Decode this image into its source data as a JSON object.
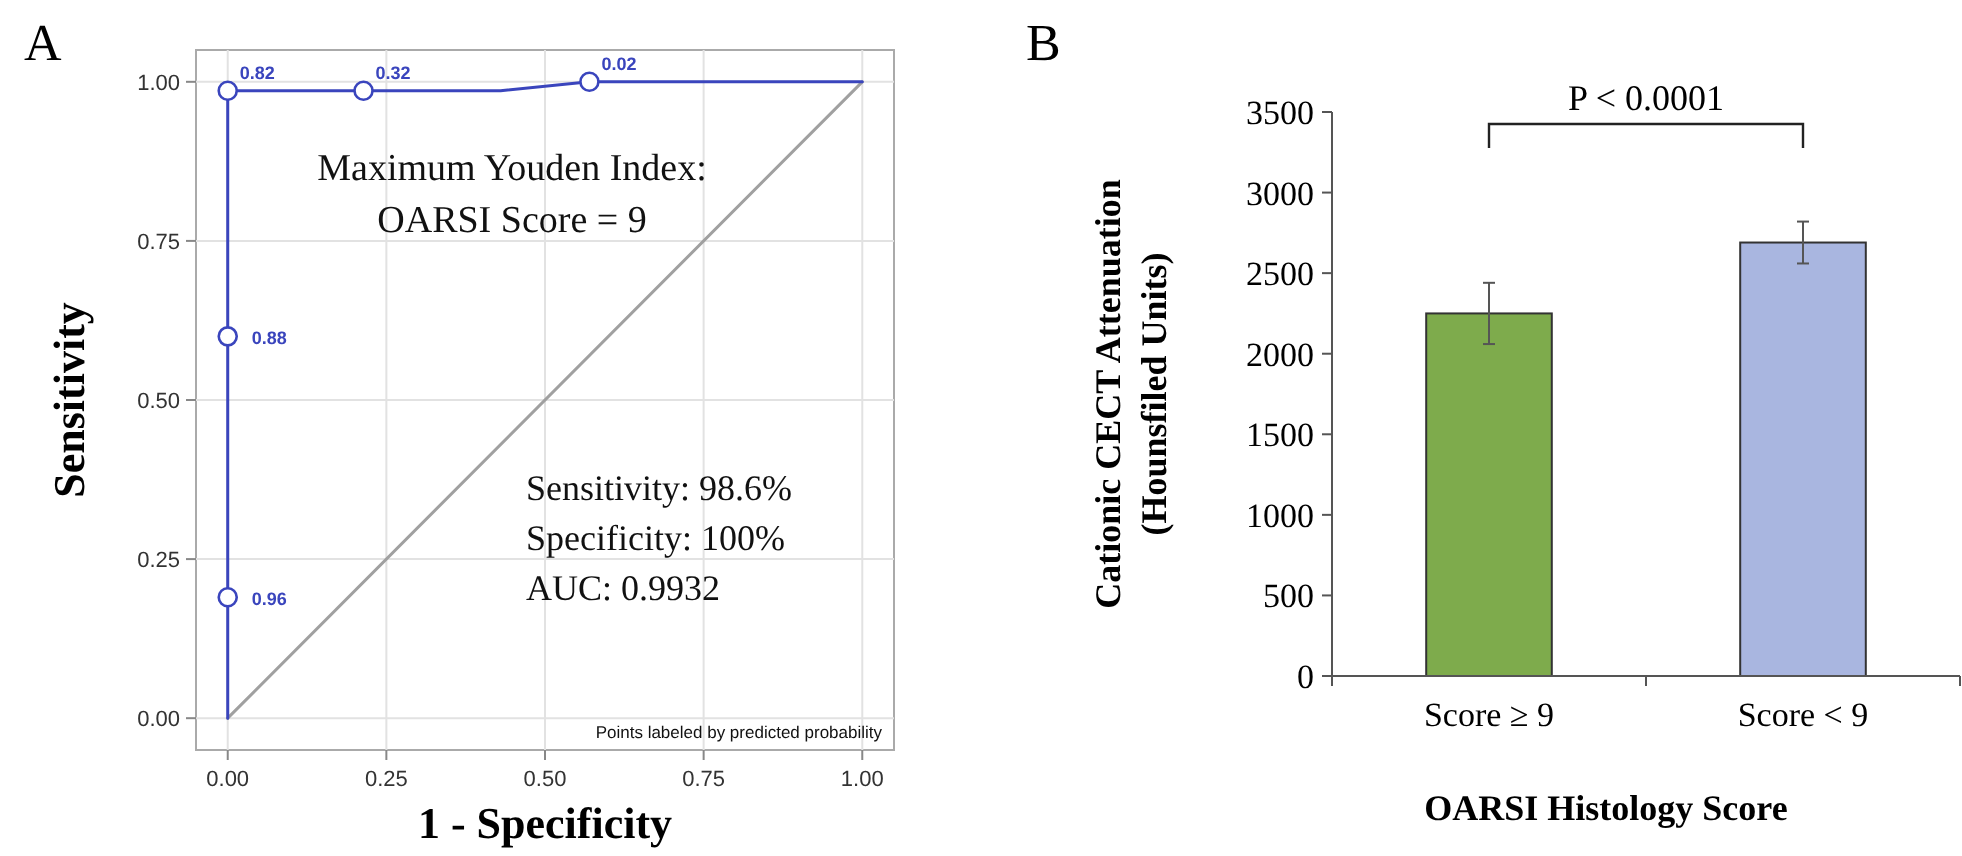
{
  "chart_data": [
    {
      "type": "line",
      "title": "A",
      "xlabel": "1 - Specificity",
      "ylabel": "Sensitivity",
      "xlim": [
        -0.05,
        1.05
      ],
      "ylim": [
        -0.05,
        1.05
      ],
      "xticks": [
        {
          "value": 0,
          "label": "0.00"
        },
        {
          "value": 0.25,
          "label": "0.25"
        },
        {
          "value": 0.5,
          "label": "0.50"
        },
        {
          "value": 0.75,
          "label": "0.75"
        },
        {
          "value": 1,
          "label": "1.00"
        }
      ],
      "yticks": [
        {
          "value": 0,
          "label": "0.00"
        },
        {
          "value": 0.25,
          "label": "0.25"
        },
        {
          "value": 0.5,
          "label": "0.50"
        },
        {
          "value": 0.75,
          "label": "0.75"
        },
        {
          "value": 1,
          "label": "1.00"
        }
      ],
      "grid": true,
      "series": [
        {
          "type": "line",
          "color": "#a0a0a0",
          "x": [
            0,
            1
          ],
          "values": [
            0,
            1
          ]
        },
        {
          "type": "line",
          "color": "#3a45bd",
          "x": [
            0,
            0,
            0,
            0,
            0.214,
            0.43,
            0.57,
            1
          ],
          "values": [
            0,
            0.19,
            0.6,
            0.986,
            0.986,
            0.986,
            1,
            1
          ]
        },
        {
          "type": "scatter",
          "color": "#3a45bd",
          "marker": "circle",
          "x": [
            0,
            0,
            0,
            0.214,
            0.57
          ],
          "values": [
            0.19,
            0.6,
            0.986,
            0.986,
            1
          ]
        }
      ],
      "annotations": [
        "Maximum Youden Index:",
        "OARSI Score = 9",
        "Sensitivity: 98.6%",
        "Specificity: 100%",
        "AUC: 0.9932",
        "Points labeled by predicted probability",
        {
          "text": "0.96",
          "x": 0,
          "y": 0.19
        },
        {
          "text": "0.88",
          "x": 0,
          "y": 0.6
        },
        {
          "text": "0.82",
          "x": 0,
          "y": 0.986
        },
        {
          "text": "0.32",
          "x": 0.214,
          "y": 0.986
        },
        {
          "text": "0.02",
          "x": 0.57,
          "y": 1
        }
      ]
    },
    {
      "type": "bar",
      "title": "B",
      "xlabel": "OARSI Histology Score",
      "ylabel": "Cationic CECT Attenuation\n(Hounsfiled Units)",
      "categories": [
        "Score ≥ 9",
        "Score < 9"
      ],
      "values": [
        2250,
        2690
      ],
      "colors": [
        "#7eab4c",
        "#a9b6e0"
      ],
      "errors": [
        190,
        130
      ],
      "ylim": [
        0,
        3500
      ],
      "yticks": [
        0,
        500,
        1000,
        1500,
        2000,
        2500,
        3000,
        3500
      ],
      "annotations": [
        "P < 0.0001"
      ]
    }
  ]
}
